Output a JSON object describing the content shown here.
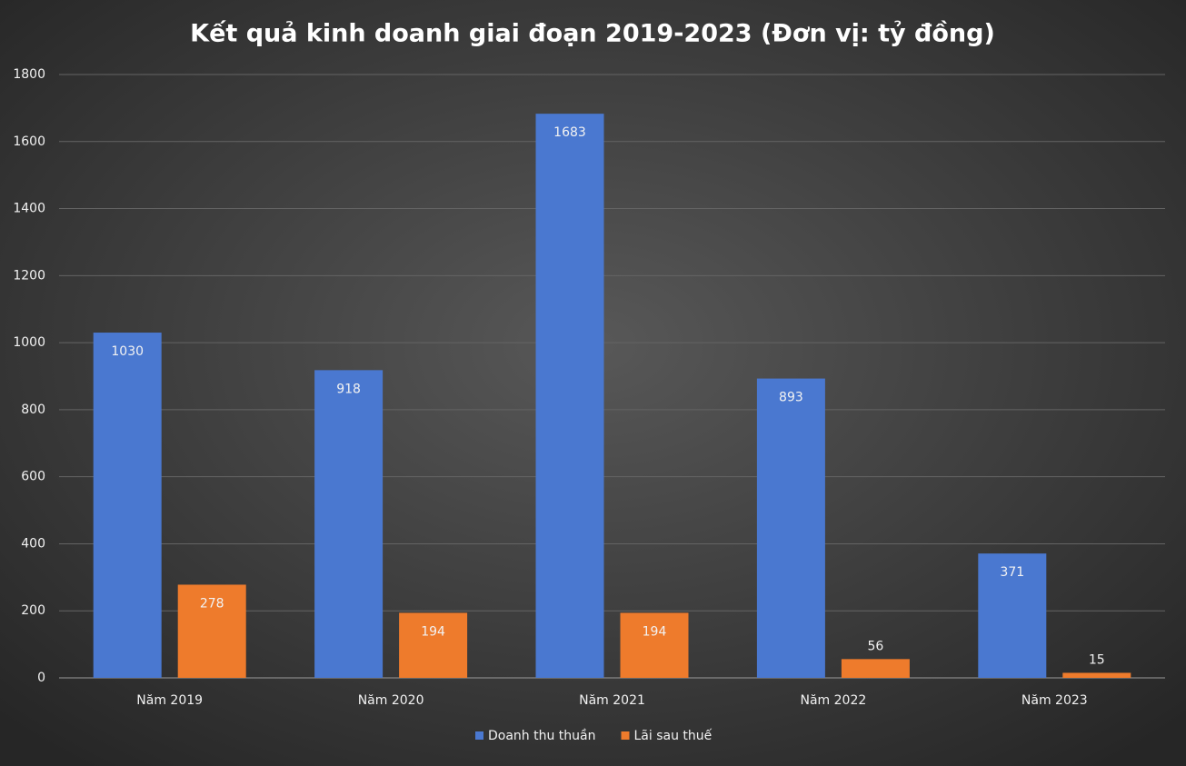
{
  "chart_data": {
    "type": "bar",
    "title": "Kết quả kinh doanh giai đoạn 2019-2023 (Đơn vị: tỷ đồng)",
    "categories": [
      "Năm 2019",
      "Năm 2020",
      "Năm 2021",
      "Năm 2022",
      "Năm 2023"
    ],
    "series": [
      {
        "name": "Doanh thu thuần",
        "color": "#4a78d0",
        "values": [
          1030,
          918,
          1683,
          893,
          371
        ]
      },
      {
        "name": "Lãi sau thuế",
        "color": "#ee7b2c",
        "values": [
          278,
          194,
          194,
          56,
          15
        ]
      }
    ],
    "ylim": [
      0,
      1800
    ],
    "yticks": [
      0,
      200,
      400,
      600,
      800,
      1000,
      1200,
      1400,
      1600,
      1800
    ],
    "grid": true,
    "legend": "bottom"
  }
}
